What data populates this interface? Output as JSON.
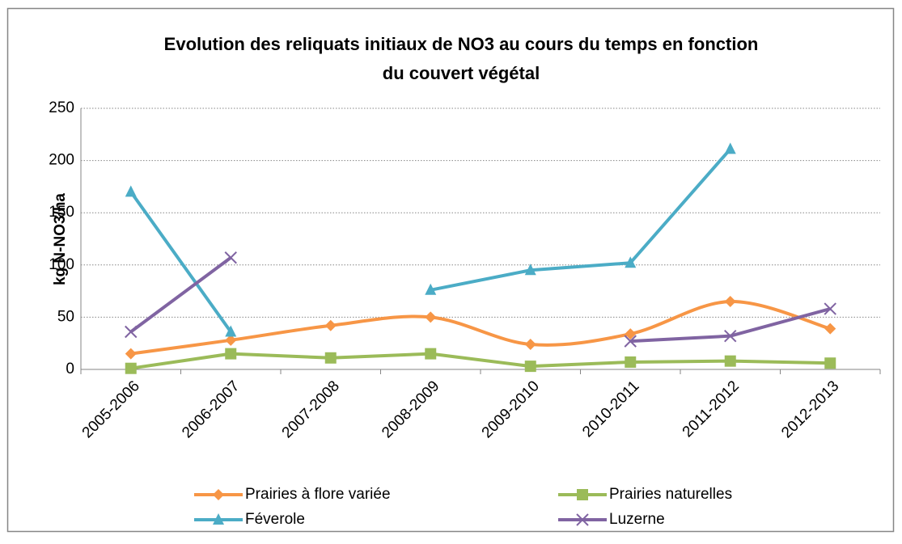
{
  "chart_data": {
    "type": "line",
    "title": [
      "Evolution des reliquats initiaux de NO3 au cours du temps en fonction",
      "du couvert végétal"
    ],
    "y_label": "kg N-NO3/ha",
    "categories": [
      "2005-2006",
      "2006-2007",
      "2007-2008",
      "2008-2009",
      "2009-2010",
      "2010-2011",
      "2011-2012",
      "2012-2013"
    ],
    "series": [
      {
        "name": "Prairies à flore variée",
        "color": "#f79646",
        "marker": "diamond",
        "smooth": true,
        "values": [
          15,
          28,
          42,
          50,
          24,
          34,
          65,
          39
        ]
      },
      {
        "name": "Prairies naturelles",
        "color": "#9bbb59",
        "marker": "square",
        "smooth": false,
        "values": [
          1,
          15,
          11,
          15,
          3,
          7,
          8,
          6
        ]
      },
      {
        "name": "Féverole",
        "color": "#4bacc6",
        "marker": "triangle",
        "smooth": false,
        "values": [
          170,
          36,
          null,
          76,
          95,
          102,
          211,
          null
        ]
      },
      {
        "name": "Luzerne",
        "color": "#8064a2",
        "marker": "x",
        "smooth": false,
        "values": [
          36,
          107,
          null,
          null,
          null,
          27,
          32,
          58
        ]
      }
    ],
    "ylim": [
      0,
      250
    ],
    "yticks": [
      0,
      50,
      100,
      150,
      200,
      250
    ],
    "grid": true,
    "legend": "bottom"
  }
}
